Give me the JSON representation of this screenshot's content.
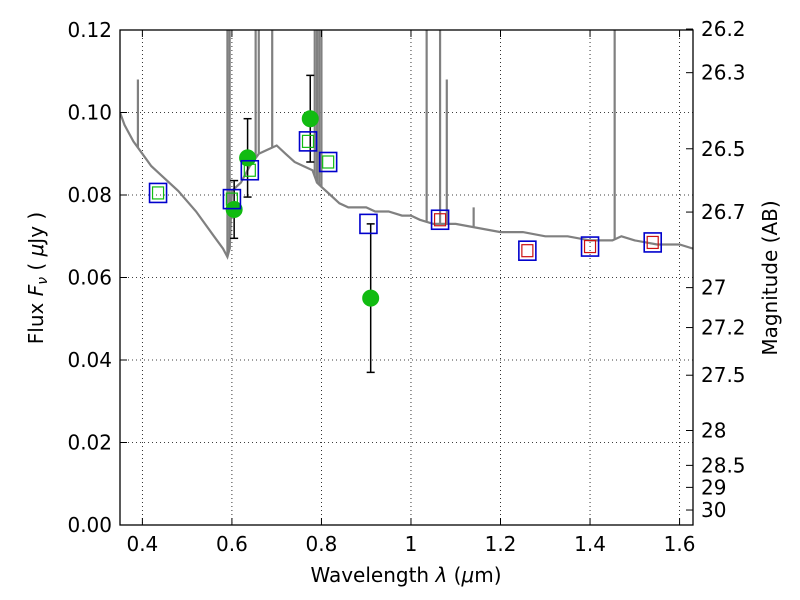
{
  "chart_data": {
    "type": "scatter",
    "title": "",
    "xlabel": "Wavelength  λ (μm)",
    "ylabel": "Flux  Fν  ( μJy )",
    "ylabel_right": "Magnitude (AB)",
    "xlim": [
      0.35,
      1.63
    ],
    "ylim": [
      0.0,
      0.12
    ],
    "grid": true,
    "x_ticks": [
      {
        "value": 0.4,
        "label": "0.4"
      },
      {
        "value": 0.6,
        "label": "0.6"
      },
      {
        "value": 0.8,
        "label": "0.8"
      },
      {
        "value": 1.0,
        "label": "1"
      },
      {
        "value": 1.2,
        "label": "1.2"
      },
      {
        "value": 1.4,
        "label": "1.4"
      },
      {
        "value": 1.6,
        "label": "1.6"
      }
    ],
    "y_ticks": [
      {
        "value": 0.0,
        "label": "0.00"
      },
      {
        "value": 0.02,
        "label": "0.02"
      },
      {
        "value": 0.04,
        "label": "0.04"
      },
      {
        "value": 0.06,
        "label": "0.06"
      },
      {
        "value": 0.08,
        "label": "0.08"
      },
      {
        "value": 0.1,
        "label": "0.10"
      },
      {
        "value": 0.12,
        "label": "0.12"
      }
    ],
    "mag_ticks": [
      {
        "mag": 26.2,
        "label": "26.2"
      },
      {
        "mag": 26.3,
        "label": "26.3"
      },
      {
        "mag": 26.5,
        "label": "26.5"
      },
      {
        "mag": 26.7,
        "label": "26.7"
      },
      {
        "mag": 27.0,
        "label": "27"
      },
      {
        "mag": 27.2,
        "label": "27.2"
      },
      {
        "mag": 27.5,
        "label": "27.5"
      },
      {
        "mag": 28.0,
        "label": "28"
      },
      {
        "mag": 28.5,
        "label": "28.5"
      },
      {
        "mag": 29.0,
        "label": "29"
      },
      {
        "mag": 30.0,
        "label": "30"
      }
    ],
    "series": [
      {
        "name": "SED template",
        "kind": "line",
        "color": "#808080",
        "points": [
          [
            0.35,
            0.1
          ],
          [
            0.36,
            0.097
          ],
          [
            0.38,
            0.093
          ],
          [
            0.4,
            0.09
          ],
          [
            0.42,
            0.087
          ],
          [
            0.44,
            0.085
          ],
          [
            0.48,
            0.081
          ],
          [
            0.52,
            0.076
          ],
          [
            0.56,
            0.07
          ],
          [
            0.58,
            0.067
          ],
          [
            0.59,
            0.065
          ],
          [
            0.595,
            0.067
          ],
          [
            0.6,
            0.081
          ],
          [
            0.62,
            0.083
          ],
          [
            0.64,
            0.087
          ],
          [
            0.66,
            0.09
          ],
          [
            0.68,
            0.091
          ],
          [
            0.7,
            0.092
          ],
          [
            0.72,
            0.09
          ],
          [
            0.74,
            0.088
          ],
          [
            0.76,
            0.087
          ],
          [
            0.78,
            0.086
          ],
          [
            0.79,
            0.083
          ],
          [
            0.8,
            0.082
          ],
          [
            0.82,
            0.08
          ],
          [
            0.84,
            0.078
          ],
          [
            0.86,
            0.077
          ],
          [
            0.88,
            0.077
          ],
          [
            0.9,
            0.077
          ],
          [
            0.92,
            0.076
          ],
          [
            0.95,
            0.076
          ],
          [
            0.98,
            0.075
          ],
          [
            1.0,
            0.075
          ],
          [
            1.02,
            0.074
          ],
          [
            1.05,
            0.073
          ],
          [
            1.1,
            0.073
          ],
          [
            1.15,
            0.072
          ],
          [
            1.2,
            0.071
          ],
          [
            1.25,
            0.071
          ],
          [
            1.3,
            0.07
          ],
          [
            1.35,
            0.07
          ],
          [
            1.4,
            0.069
          ],
          [
            1.45,
            0.069
          ],
          [
            1.47,
            0.07
          ],
          [
            1.5,
            0.069
          ],
          [
            1.55,
            0.068
          ],
          [
            1.6,
            0.068
          ],
          [
            1.63,
            0.067
          ]
        ]
      },
      {
        "name": "Emission lines",
        "kind": "spikes",
        "color": "#808080",
        "lines": [
          [
            0.39,
            0.108
          ],
          [
            0.59,
            0.13
          ],
          [
            0.595,
            0.13
          ],
          [
            0.653,
            0.13
          ],
          [
            0.66,
            0.13
          ],
          [
            0.69,
            0.13
          ],
          [
            0.785,
            0.13
          ],
          [
            0.79,
            0.13
          ],
          [
            0.795,
            0.13
          ],
          [
            0.8,
            0.13
          ],
          [
            1.035,
            0.13
          ],
          [
            1.065,
            0.13
          ],
          [
            1.08,
            0.108
          ],
          [
            1.14,
            0.077
          ],
          [
            1.455,
            0.13
          ]
        ]
      },
      {
        "name": "Observed flux",
        "kind": "points",
        "color": "#11bb11",
        "points": [
          {
            "x": 0.605,
            "y": 0.0765,
            "yerr": 0.007
          },
          {
            "x": 0.635,
            "y": 0.089,
            "yerr": 0.0095
          },
          {
            "x": 0.775,
            "y": 0.0985,
            "yerr": 0.0105
          },
          {
            "x": 0.91,
            "y": 0.055,
            "yerr": 0.018
          }
        ]
      },
      {
        "name": "Model photometry",
        "kind": "squares",
        "color": "#0000cc",
        "x": [
          0.435,
          0.6,
          0.64,
          0.77,
          0.815,
          0.905,
          1.065,
          1.26,
          1.4,
          1.54
        ],
        "y": [
          0.0805,
          0.079,
          0.086,
          0.093,
          0.088,
          0.073,
          0.074,
          0.0665,
          0.0675,
          0.0685
        ]
      },
      {
        "name": "Observed bands",
        "kind": "inner-squares",
        "x": [
          0.435,
          0.6,
          0.64,
          0.77,
          0.815,
          1.065,
          1.26,
          1.4,
          1.54
        ],
        "y": [
          0.0805,
          0.079,
          0.086,
          0.093,
          0.088,
          0.074,
          0.0665,
          0.0675,
          0.0685
        ],
        "colors": [
          "#11bb11",
          "#11bb11",
          "#11bb11",
          "#11bb11",
          "#11bb11",
          "#cc1111",
          "#cc1111",
          "#cc1111",
          "#cc1111"
        ]
      }
    ]
  }
}
